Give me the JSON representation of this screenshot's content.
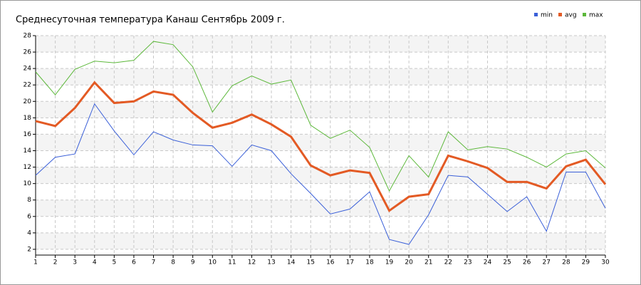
{
  "chart_data": {
    "type": "line",
    "title": "Среднесуточная температура Канаш  Сентябрь 2009 г.",
    "x": [
      1,
      2,
      3,
      4,
      5,
      6,
      7,
      8,
      9,
      10,
      11,
      12,
      13,
      14,
      15,
      16,
      17,
      18,
      19,
      20,
      21,
      22,
      23,
      24,
      25,
      26,
      27,
      28,
      29,
      30
    ],
    "xlim": [
      1,
      30
    ],
    "xticks": [
      1,
      2,
      3,
      4,
      5,
      6,
      7,
      8,
      9,
      10,
      11,
      12,
      13,
      14,
      15,
      16,
      17,
      18,
      19,
      20,
      21,
      22,
      23,
      24,
      25,
      26,
      27,
      28,
      29,
      30
    ],
    "ylim": [
      1.3,
      28
    ],
    "yticks": [
      2,
      4,
      6,
      8,
      10,
      12,
      14,
      16,
      18,
      20,
      22,
      24,
      26,
      28
    ],
    "grid": true,
    "legend": "top-right",
    "series": [
      {
        "name": "min",
        "color": "#3a5fd8",
        "values": [
          11.0,
          13.2,
          13.6,
          19.7,
          16.4,
          13.5,
          16.3,
          15.3,
          14.7,
          14.6,
          12.1,
          14.7,
          14.0,
          11.2,
          8.8,
          6.3,
          6.9,
          9.0,
          3.2,
          2.6,
          6.2,
          11.0,
          10.8,
          8.7,
          6.6,
          8.4,
          4.2,
          11.4,
          11.4,
          7.0
        ]
      },
      {
        "name": "avg",
        "color": "#e35a24",
        "values": [
          17.6,
          17.0,
          19.2,
          22.3,
          19.8,
          20.0,
          21.2,
          20.8,
          18.6,
          16.8,
          17.4,
          18.4,
          17.2,
          15.7,
          12.2,
          11.0,
          11.6,
          11.3,
          6.7,
          8.4,
          8.7,
          13.4,
          12.7,
          11.9,
          10.2,
          10.2,
          9.4,
          12.1,
          12.9,
          9.9
        ]
      },
      {
        "name": "max",
        "color": "#5cb83a",
        "values": [
          23.6,
          20.8,
          23.9,
          24.9,
          24.7,
          25.0,
          27.3,
          26.9,
          24.2,
          18.7,
          21.9,
          23.1,
          22.1,
          22.6,
          17.1,
          15.5,
          16.5,
          14.4,
          9.1,
          13.4,
          10.8,
          16.3,
          14.1,
          14.5,
          14.2,
          13.2,
          12.0,
          13.6,
          14.0,
          11.9
        ]
      }
    ]
  }
}
